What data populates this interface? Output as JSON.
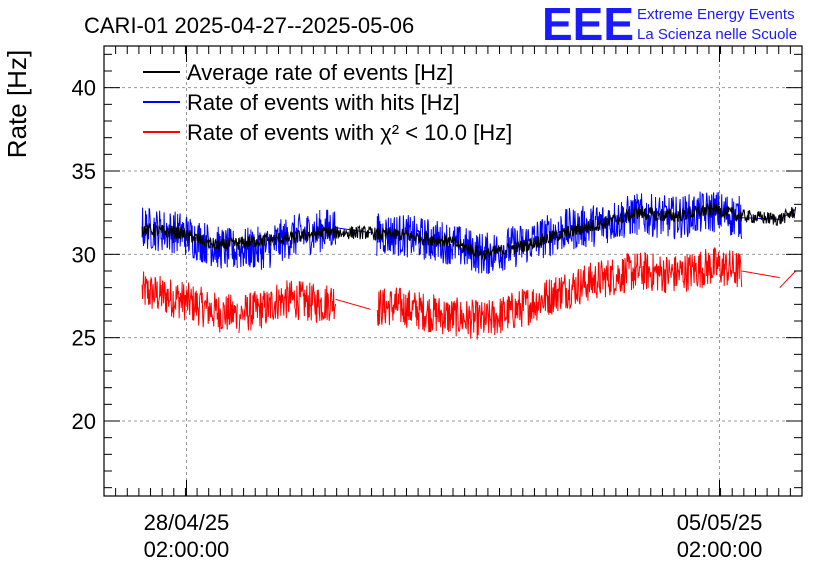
{
  "title": "CARI-01 2025-04-27--2025-05-06",
  "logo": {
    "mark": "EEE",
    "line1": "Extreme Energy Events",
    "line2": "La Scienza nelle Scuole",
    "color": "#1a1aff"
  },
  "chart_data": {
    "type": "line",
    "ylabel": "Rate [Hz]",
    "xlabel": "",
    "ylim": [
      15.5,
      42.5
    ],
    "y_ticks": [
      "20",
      "25",
      "30",
      "35",
      "40"
    ],
    "x_range": [
      "2025-04-27 00:00",
      "2025-05-06 04:00"
    ],
    "x_ticks": [
      {
        "at": "2025-04-28 02:00",
        "line1": "28/04/25",
        "line2": "02:00:00"
      },
      {
        "at": "2025-05-05 02:00",
        "line1": "05/05/25",
        "line2": "02:00:00"
      }
    ],
    "grid": true,
    "legend_placement": "top-left",
    "series": [
      {
        "name": "Average rate of events [Hz]",
        "color": "#000000",
        "noise": 0.4,
        "points": [
          [
            "2025-04-27 12:00",
            31.5
          ],
          [
            "2025-04-28 00:00",
            31.3
          ],
          [
            "2025-04-28 12:00",
            30.5
          ],
          [
            "2025-04-29 00:00",
            30.8
          ],
          [
            "2025-04-29 12:00",
            31.0
          ],
          [
            "2025-04-29 20:00",
            31.3
          ],
          [
            "2025-04-30 12:00",
            31.3
          ],
          [
            "2025-04-30 14:00",
            31.2
          ],
          [
            "2025-04-30 20:00",
            31.2
          ],
          [
            "2025-05-01 12:00",
            30.8
          ],
          [
            "2025-05-02 00:00",
            30.0
          ],
          [
            "2025-05-02 12:00",
            30.5
          ],
          [
            "2025-05-03 00:00",
            31.2
          ],
          [
            "2025-05-03 12:00",
            31.8
          ],
          [
            "2025-05-04 00:00",
            32.5
          ],
          [
            "2025-05-04 12:00",
            32.3
          ],
          [
            "2025-05-05 00:00",
            32.7
          ],
          [
            "2025-05-05 09:00",
            32.3
          ],
          [
            "2025-05-05 21:00",
            32.1
          ],
          [
            "2025-05-06 02:00",
            32.6
          ]
        ]
      },
      {
        "name": "Rate of events with hits [Hz]",
        "color": "#0000ff",
        "noise": 1.3,
        "segments": [
          [
            [
              "2025-04-27 12:00",
              31.6
            ],
            [
              "2025-04-28 00:00",
              31.3
            ],
            [
              "2025-04-28 12:00",
              30.4
            ],
            [
              "2025-04-28 18:00",
              30.2
            ]
          ],
          [
            [
              "2025-04-28 18:30",
              30.3
            ],
            [
              "2025-04-29 04:00",
              30.4
            ],
            [
              "2025-04-29 06:00",
              30.7
            ],
            [
              "2025-04-29 12:00",
              31.1
            ],
            [
              "2025-04-29 20:00",
              31.4
            ],
            [
              "2025-04-30 01:00",
              31.6
            ]
          ],
          [
            [
              "2025-04-30 01:00",
              31.6
            ],
            [
              "2025-04-30 12:00",
              31.3
            ]
          ],
          [
            [
              "2025-04-30 14:00",
              31.2
            ],
            [
              "2025-04-30 20:00",
              31.2
            ],
            [
              "2025-05-01 12:00",
              30.7
            ],
            [
              "2025-05-02 00:00",
              30.0
            ],
            [
              "2025-05-02 12:00",
              30.6
            ],
            [
              "2025-05-03 00:00",
              31.4
            ],
            [
              "2025-05-03 12:00",
              31.8
            ],
            [
              "2025-05-04 00:00",
              32.4
            ],
            [
              "2025-05-04 12:00",
              32.2
            ],
            [
              "2025-05-05 00:00",
              32.6
            ],
            [
              "2025-05-05 09:00",
              32.2
            ]
          ],
          [
            [
              "2025-05-05 09:00",
              32.2
            ],
            [
              "2025-05-05 21:00",
              32.1
            ]
          ],
          [
            [
              "2025-05-05 21:00",
              32.1
            ],
            [
              "2025-05-06 02:00",
              32.7
            ]
          ]
        ]
      },
      {
        "name": "Rate of events with χ² < 10.0 [Hz]",
        "color": "#ff0000",
        "noise": 1.2,
        "segments": [
          [
            [
              "2025-04-27 12:00",
              27.8
            ],
            [
              "2025-04-28 00:00",
              27.3
            ],
            [
              "2025-04-28 12:00",
              26.5
            ],
            [
              "2025-04-28 18:00",
              26.4
            ]
          ],
          [
            [
              "2025-04-28 18:30",
              26.4
            ],
            [
              "2025-04-29 04:00",
              26.8
            ],
            [
              "2025-04-29 06:00",
              27.2
            ],
            [
              "2025-04-29 12:00",
              27.3
            ],
            [
              "2025-04-29 20:00",
              27.0
            ],
            [
              "2025-04-30 01:00",
              27.3
            ]
          ],
          [
            [
              "2025-04-30 01:00",
              27.3
            ],
            [
              "2025-04-30 12:00",
              26.7
            ]
          ],
          [
            [
              "2025-04-30 14:00",
              26.8
            ],
            [
              "2025-04-30 20:00",
              26.9
            ],
            [
              "2025-05-01 12:00",
              26.3
            ],
            [
              "2025-05-02 00:00",
              26.0
            ],
            [
              "2025-05-02 12:00",
              26.8
            ],
            [
              "2025-05-03 00:00",
              27.8
            ],
            [
              "2025-05-03 12:00",
              28.5
            ],
            [
              "2025-05-04 00:00",
              29.0
            ],
            [
              "2025-05-04 12:00",
              28.8
            ],
            [
              "2025-05-05 00:00",
              29.3
            ],
            [
              "2025-05-05 09:00",
              29.0
            ]
          ],
          [
            [
              "2025-05-05 09:00",
              29.0
            ],
            [
              "2025-05-05 21:00",
              28.6
            ]
          ],
          [
            [
              "2025-05-05 21:00",
              28.0
            ],
            [
              "2025-05-06 02:00",
              29.0
            ]
          ]
        ]
      }
    ]
  }
}
